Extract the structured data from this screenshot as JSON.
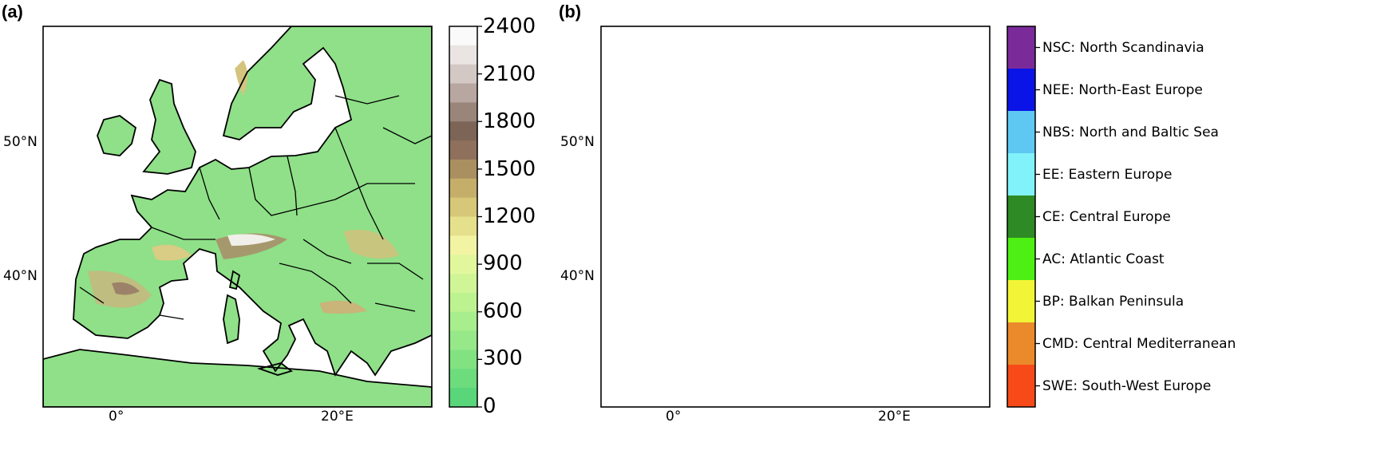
{
  "panel_a": {
    "label": "(a)",
    "lat_ticks": [
      "50°N",
      "40°N"
    ],
    "lon_ticks": [
      "0°",
      "20°E"
    ],
    "colorbar": {
      "ticks": [
        "2400",
        "2100",
        "1800",
        "1500",
        "1200",
        "900",
        "600",
        "300",
        "0"
      ],
      "min": 0,
      "max": 2400,
      "step": 150,
      "colors": [
        "#58d679",
        "#6cdc7d",
        "#82e282",
        "#96e888",
        "#a8ee8c",
        "#bcf290",
        "#cff597",
        "#e2f79c",
        "#f2f4a4",
        "#e5e08c",
        "#d6c878",
        "#c4ae6a",
        "#aa9060",
        "#8e705c",
        "#7c6456",
        "#9a857b",
        "#b8a7a1",
        "#d4c8c5",
        "#eae4e3",
        "#fbfafa"
      ]
    }
  },
  "panel_b": {
    "label": "(b)",
    "lat_ticks": [
      "50°N",
      "40°N"
    ],
    "lon_ticks": [
      "0°",
      "20°E"
    ],
    "regions": [
      {
        "label": "NSC: North Scandinavia",
        "color": "#7b2a9a"
      },
      {
        "label": "NEE: North-East Europe",
        "color": "#0a14e6"
      },
      {
        "label": "NBS: North and Baltic Sea",
        "color": "#5ec8f2"
      },
      {
        "label": "EE: Eastern Europe",
        "color": "#82f2fa"
      },
      {
        "label": "CE: Central Europe",
        "color": "#2e8a24"
      },
      {
        "label": "AC: Atlantic Coast",
        "color": "#4ef014"
      },
      {
        "label": "BP: Balkan Peninsula",
        "color": "#f2f536"
      },
      {
        "label": "CMD: Central Mediterranean",
        "color": "#ea8a2a"
      },
      {
        "label": "SWE: South-West Europe",
        "color": "#f84a18"
      }
    ]
  }
}
